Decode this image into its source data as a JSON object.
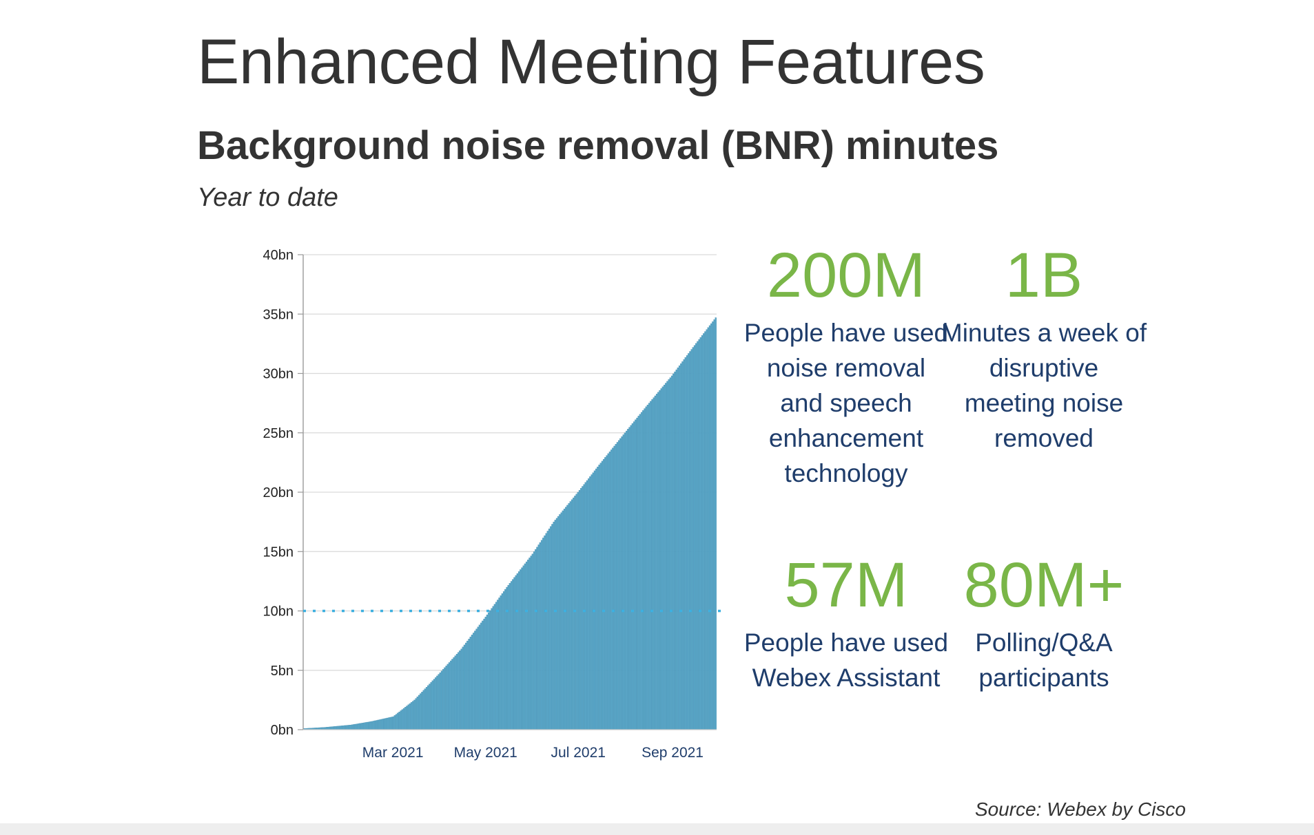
{
  "slide": {
    "title": "Enhanced Meeting Features",
    "subtitle": "Background noise removal (BNR) minutes",
    "period": "Year to date",
    "source": "Source: Webex by Cisco"
  },
  "stats": [
    {
      "value": "200M",
      "description": "People have used noise removal and speech enhancement technology"
    },
    {
      "value": "1B",
      "description": "Minutes a week of disruptive meeting noise removed"
    },
    {
      "value": "57M",
      "description": "People have used Webex Assistant"
    },
    {
      "value": "80M+",
      "description": "Polling/Q&A participants"
    }
  ],
  "colors": {
    "bar": "#5aa7c8",
    "bar_edge": "#3b86aa",
    "reference_line": "#3db0e0",
    "stat_value": "#7ab648",
    "stat_text": "#1f3d6b",
    "axis_text": "#1f3d6b",
    "grid": "#d9d9d9"
  },
  "chart_data": {
    "type": "bar",
    "title": "",
    "xlabel": "",
    "ylabel": "",
    "unit": "bn",
    "ylim": [
      0,
      40
    ],
    "yticks": [
      0,
      5,
      10,
      15,
      20,
      25,
      30,
      35,
      40
    ],
    "ytick_labels": [
      "0bn",
      "5bn",
      "10bn",
      "15bn",
      "20bn",
      "25bn",
      "30bn",
      "35bn",
      "40bn"
    ],
    "xlim": [
      "2021-01-01",
      "2021-09-30"
    ],
    "xtick_dates": [
      "2021-03-01",
      "2021-05-01",
      "2021-07-01",
      "2021-09-01"
    ],
    "xtick_labels": [
      "Mar 2021",
      "May 2021",
      "Jul 2021",
      "Sep 2021"
    ],
    "reference_line": {
      "y": 10,
      "style": "dotted"
    },
    "grid": true,
    "series": [
      {
        "dates": [
          "2021-01-01",
          "2021-01-15",
          "2021-02-01",
          "2021-02-15",
          "2021-03-01",
          "2021-03-15",
          "2021-04-01",
          "2021-04-15",
          "2021-05-01",
          "2021-05-15",
          "2021-06-01",
          "2021-06-15",
          "2021-07-01",
          "2021-07-15",
          "2021-08-01",
          "2021-08-15",
          "2021-09-01",
          "2021-09-15",
          "2021-09-30"
        ],
        "values": [
          0.1,
          0.2,
          0.4,
          0.7,
          1.1,
          2.5,
          4.8,
          6.8,
          9.5,
          12.0,
          14.8,
          17.5,
          20.0,
          22.3,
          25.0,
          27.2,
          29.8,
          32.2,
          34.7
        ]
      }
    ]
  }
}
